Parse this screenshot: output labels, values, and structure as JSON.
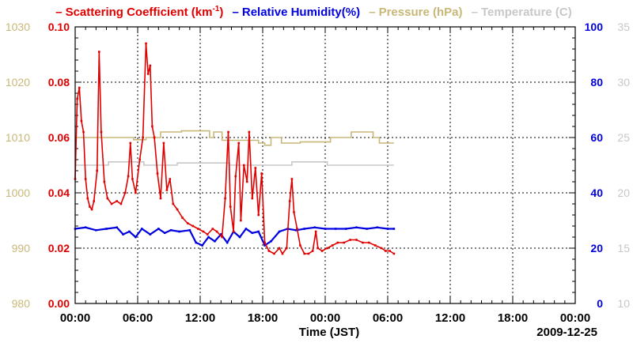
{
  "legend": {
    "scattering": "Scattering Coefficient (km",
    "scattering_sup": "-1",
    "scattering_close": ")",
    "humidity": "Relative Humidity(%)",
    "pressure": "Pressure (hPa)",
    "temperature": "Temperature (C)",
    "dash": "–"
  },
  "colors": {
    "scattering": "#e00000",
    "humidity": "#0000e0",
    "pressure": "#c8b878",
    "temperature": "#c8c8c8",
    "grid": "#000000"
  },
  "xaxis": {
    "label": "Time (JST)",
    "date": "2009-12-25",
    "ticks": [
      "00:00",
      "06:00",
      "12:00",
      "18:00",
      "00:00",
      "06:00",
      "12:00",
      "18:00",
      "00:00"
    ]
  },
  "chart_data": {
    "type": "line",
    "x_unit": "hours from start",
    "xlim": [
      0,
      48
    ],
    "axes": {
      "scattering": {
        "range": [
          0,
          0.1
        ],
        "ticks": [
          "0.00",
          "0.02",
          "0.04",
          "0.06",
          "0.08",
          "0.10"
        ]
      },
      "pressure": {
        "range": [
          980,
          1030
        ],
        "ticks": [
          "980",
          "990",
          "1000",
          "1010",
          "1020",
          "1030"
        ]
      },
      "humidity": {
        "range": [
          0,
          100
        ],
        "ticks": [
          "0",
          "20",
          "40",
          "60",
          "80",
          "100"
        ]
      },
      "temperature": {
        "range": [
          10,
          35
        ],
        "ticks": [
          "10",
          "15",
          "20",
          "25",
          "30",
          "35"
        ]
      }
    },
    "series": [
      {
        "name": "Scattering Coefficient",
        "axis": "scattering",
        "points": [
          [
            0,
            0.045
          ],
          [
            0.2,
            0.074
          ],
          [
            0.4,
            0.078
          ],
          [
            0.6,
            0.066
          ],
          [
            0.8,
            0.062
          ],
          [
            1.0,
            0.045
          ],
          [
            1.2,
            0.038
          ],
          [
            1.4,
            0.035
          ],
          [
            1.6,
            0.034
          ],
          [
            1.8,
            0.037
          ],
          [
            2.1,
            0.048
          ],
          [
            2.3,
            0.091
          ],
          [
            2.5,
            0.062
          ],
          [
            2.8,
            0.044
          ],
          [
            3.1,
            0.038
          ],
          [
            3.5,
            0.036
          ],
          [
            4.0,
            0.037
          ],
          [
            4.4,
            0.036
          ],
          [
            4.8,
            0.04
          ],
          [
            5.1,
            0.046
          ],
          [
            5.3,
            0.058
          ],
          [
            5.5,
            0.045
          ],
          [
            5.8,
            0.04
          ],
          [
            6.2,
            0.052
          ],
          [
            6.5,
            0.06
          ],
          [
            6.8,
            0.094
          ],
          [
            7.0,
            0.083
          ],
          [
            7.2,
            0.086
          ],
          [
            7.4,
            0.064
          ],
          [
            7.6,
            0.06
          ],
          [
            7.9,
            0.047
          ],
          [
            8.2,
            0.038
          ],
          [
            8.5,
            0.058
          ],
          [
            8.8,
            0.041
          ],
          [
            9.1,
            0.045
          ],
          [
            9.4,
            0.036
          ],
          [
            9.8,
            0.034
          ],
          [
            10.3,
            0.031
          ],
          [
            10.8,
            0.029
          ],
          [
            11.3,
            0.028
          ],
          [
            11.8,
            0.027
          ],
          [
            12.3,
            0.026
          ],
          [
            12.7,
            0.025
          ],
          [
            13.2,
            0.027
          ],
          [
            13.6,
            0.026
          ],
          [
            14.1,
            0.024
          ],
          [
            14.4,
            0.038
          ],
          [
            14.7,
            0.062
          ],
          [
            14.9,
            0.035
          ],
          [
            15.2,
            0.026
          ],
          [
            15.4,
            0.046
          ],
          [
            15.7,
            0.058
          ],
          [
            15.9,
            0.03
          ],
          [
            16.2,
            0.05
          ],
          [
            16.5,
            0.044
          ],
          [
            16.7,
            0.062
          ],
          [
            17.0,
            0.038
          ],
          [
            17.3,
            0.049
          ],
          [
            17.6,
            0.032
          ],
          [
            17.9,
            0.047
          ],
          [
            18.2,
            0.022
          ],
          [
            18.6,
            0.019
          ],
          [
            19.1,
            0.018
          ],
          [
            19.6,
            0.02
          ],
          [
            19.9,
            0.018
          ],
          [
            20.3,
            0.02
          ],
          [
            20.6,
            0.037
          ],
          [
            20.8,
            0.045
          ],
          [
            21.0,
            0.033
          ],
          [
            21.3,
            0.027
          ],
          [
            21.6,
            0.021
          ],
          [
            22.0,
            0.018
          ],
          [
            22.4,
            0.018
          ],
          [
            22.8,
            0.019
          ],
          [
            23.1,
            0.026
          ],
          [
            23.3,
            0.02
          ],
          [
            23.7,
            0.019
          ],
          [
            24.2,
            0.02
          ],
          [
            24.7,
            0.021
          ],
          [
            25.2,
            0.022
          ],
          [
            25.8,
            0.022
          ],
          [
            26.4,
            0.023
          ],
          [
            27.0,
            0.023
          ],
          [
            27.6,
            0.022
          ],
          [
            28.2,
            0.022
          ],
          [
            28.8,
            0.021
          ],
          [
            29.4,
            0.02
          ],
          [
            29.8,
            0.019
          ],
          [
            30.2,
            0.019
          ],
          [
            30.6,
            0.018
          ]
        ]
      },
      {
        "name": "Relative Humidity",
        "axis": "humidity",
        "points": [
          [
            0,
            27.0
          ],
          [
            1.0,
            27.5
          ],
          [
            2.0,
            26.5
          ],
          [
            3.0,
            27.0
          ],
          [
            4.0,
            27.5
          ],
          [
            4.6,
            25.0
          ],
          [
            5.2,
            26.0
          ],
          [
            5.8,
            24.0
          ],
          [
            6.4,
            27.0
          ],
          [
            7.2,
            25.0
          ],
          [
            8.0,
            27.0
          ],
          [
            8.6,
            25.5
          ],
          [
            9.2,
            26.5
          ],
          [
            10.0,
            26.0
          ],
          [
            11.0,
            26.5
          ],
          [
            11.6,
            22.0
          ],
          [
            12.2,
            21.0
          ],
          [
            12.8,
            24.0
          ],
          [
            13.4,
            22.5
          ],
          [
            14.0,
            25.0
          ],
          [
            14.6,
            22.0
          ],
          [
            15.2,
            26.0
          ],
          [
            15.8,
            24.0
          ],
          [
            16.4,
            27.0
          ],
          [
            17.0,
            25.5
          ],
          [
            17.6,
            26.0
          ],
          [
            18.2,
            21.0
          ],
          [
            18.8,
            22.5
          ],
          [
            19.6,
            26.0
          ],
          [
            20.4,
            27.0
          ],
          [
            21.2,
            26.5
          ],
          [
            22.0,
            27.0
          ],
          [
            23.0,
            27.5
          ],
          [
            24.0,
            27.0
          ],
          [
            25.0,
            27.0
          ],
          [
            26.0,
            27.0
          ],
          [
            27.0,
            27.5
          ],
          [
            28.0,
            27.0
          ],
          [
            29.0,
            27.5
          ],
          [
            30.0,
            27.0
          ],
          [
            30.6,
            27.0
          ]
        ]
      },
      {
        "name": "Pressure",
        "axis": "pressure",
        "points": [
          [
            0,
            1010.0
          ],
          [
            5.6,
            1010.0
          ],
          [
            5.6,
            1009.6
          ],
          [
            6.8,
            1009.6
          ],
          [
            6.8,
            1010.0
          ],
          [
            8.2,
            1010.0
          ],
          [
            8.2,
            1011.0
          ],
          [
            10.2,
            1011.0
          ],
          [
            10.2,
            1011.2
          ],
          [
            12.9,
            1011.2
          ],
          [
            12.9,
            1010.0
          ],
          [
            13.3,
            1010.0
          ],
          [
            13.3,
            1011.0
          ],
          [
            14.1,
            1011.0
          ],
          [
            14.1,
            1009.5
          ],
          [
            17.6,
            1009.5
          ],
          [
            17.6,
            1009.0
          ],
          [
            18.2,
            1009.0
          ],
          [
            18.2,
            1008.6
          ],
          [
            18.8,
            1008.6
          ],
          [
            18.8,
            1010.0
          ],
          [
            19.8,
            1010.0
          ],
          [
            19.8,
            1009.0
          ],
          [
            21.6,
            1009.0
          ],
          [
            21.6,
            1009.2
          ],
          [
            24.5,
            1009.2
          ],
          [
            24.5,
            1010.0
          ],
          [
            26.5,
            1010.0
          ],
          [
            26.5,
            1011.0
          ],
          [
            28.6,
            1011.0
          ],
          [
            28.6,
            1010.0
          ],
          [
            29.2,
            1010.0
          ],
          [
            29.2,
            1009.0
          ],
          [
            30.6,
            1009.0
          ]
        ]
      },
      {
        "name": "Temperature",
        "axis": "temperature",
        "points": [
          [
            0,
            22.5
          ],
          [
            3.2,
            22.5
          ],
          [
            3.2,
            22.8
          ],
          [
            6.6,
            22.8
          ],
          [
            6.6,
            22.5
          ],
          [
            9.8,
            22.5
          ],
          [
            9.8,
            22.7
          ],
          [
            14.8,
            22.7
          ],
          [
            14.8,
            22.5
          ],
          [
            20.8,
            22.5
          ],
          [
            20.8,
            22.8
          ],
          [
            24.2,
            22.8
          ],
          [
            24.2,
            22.5
          ],
          [
            30.6,
            22.5
          ]
        ]
      }
    ]
  }
}
